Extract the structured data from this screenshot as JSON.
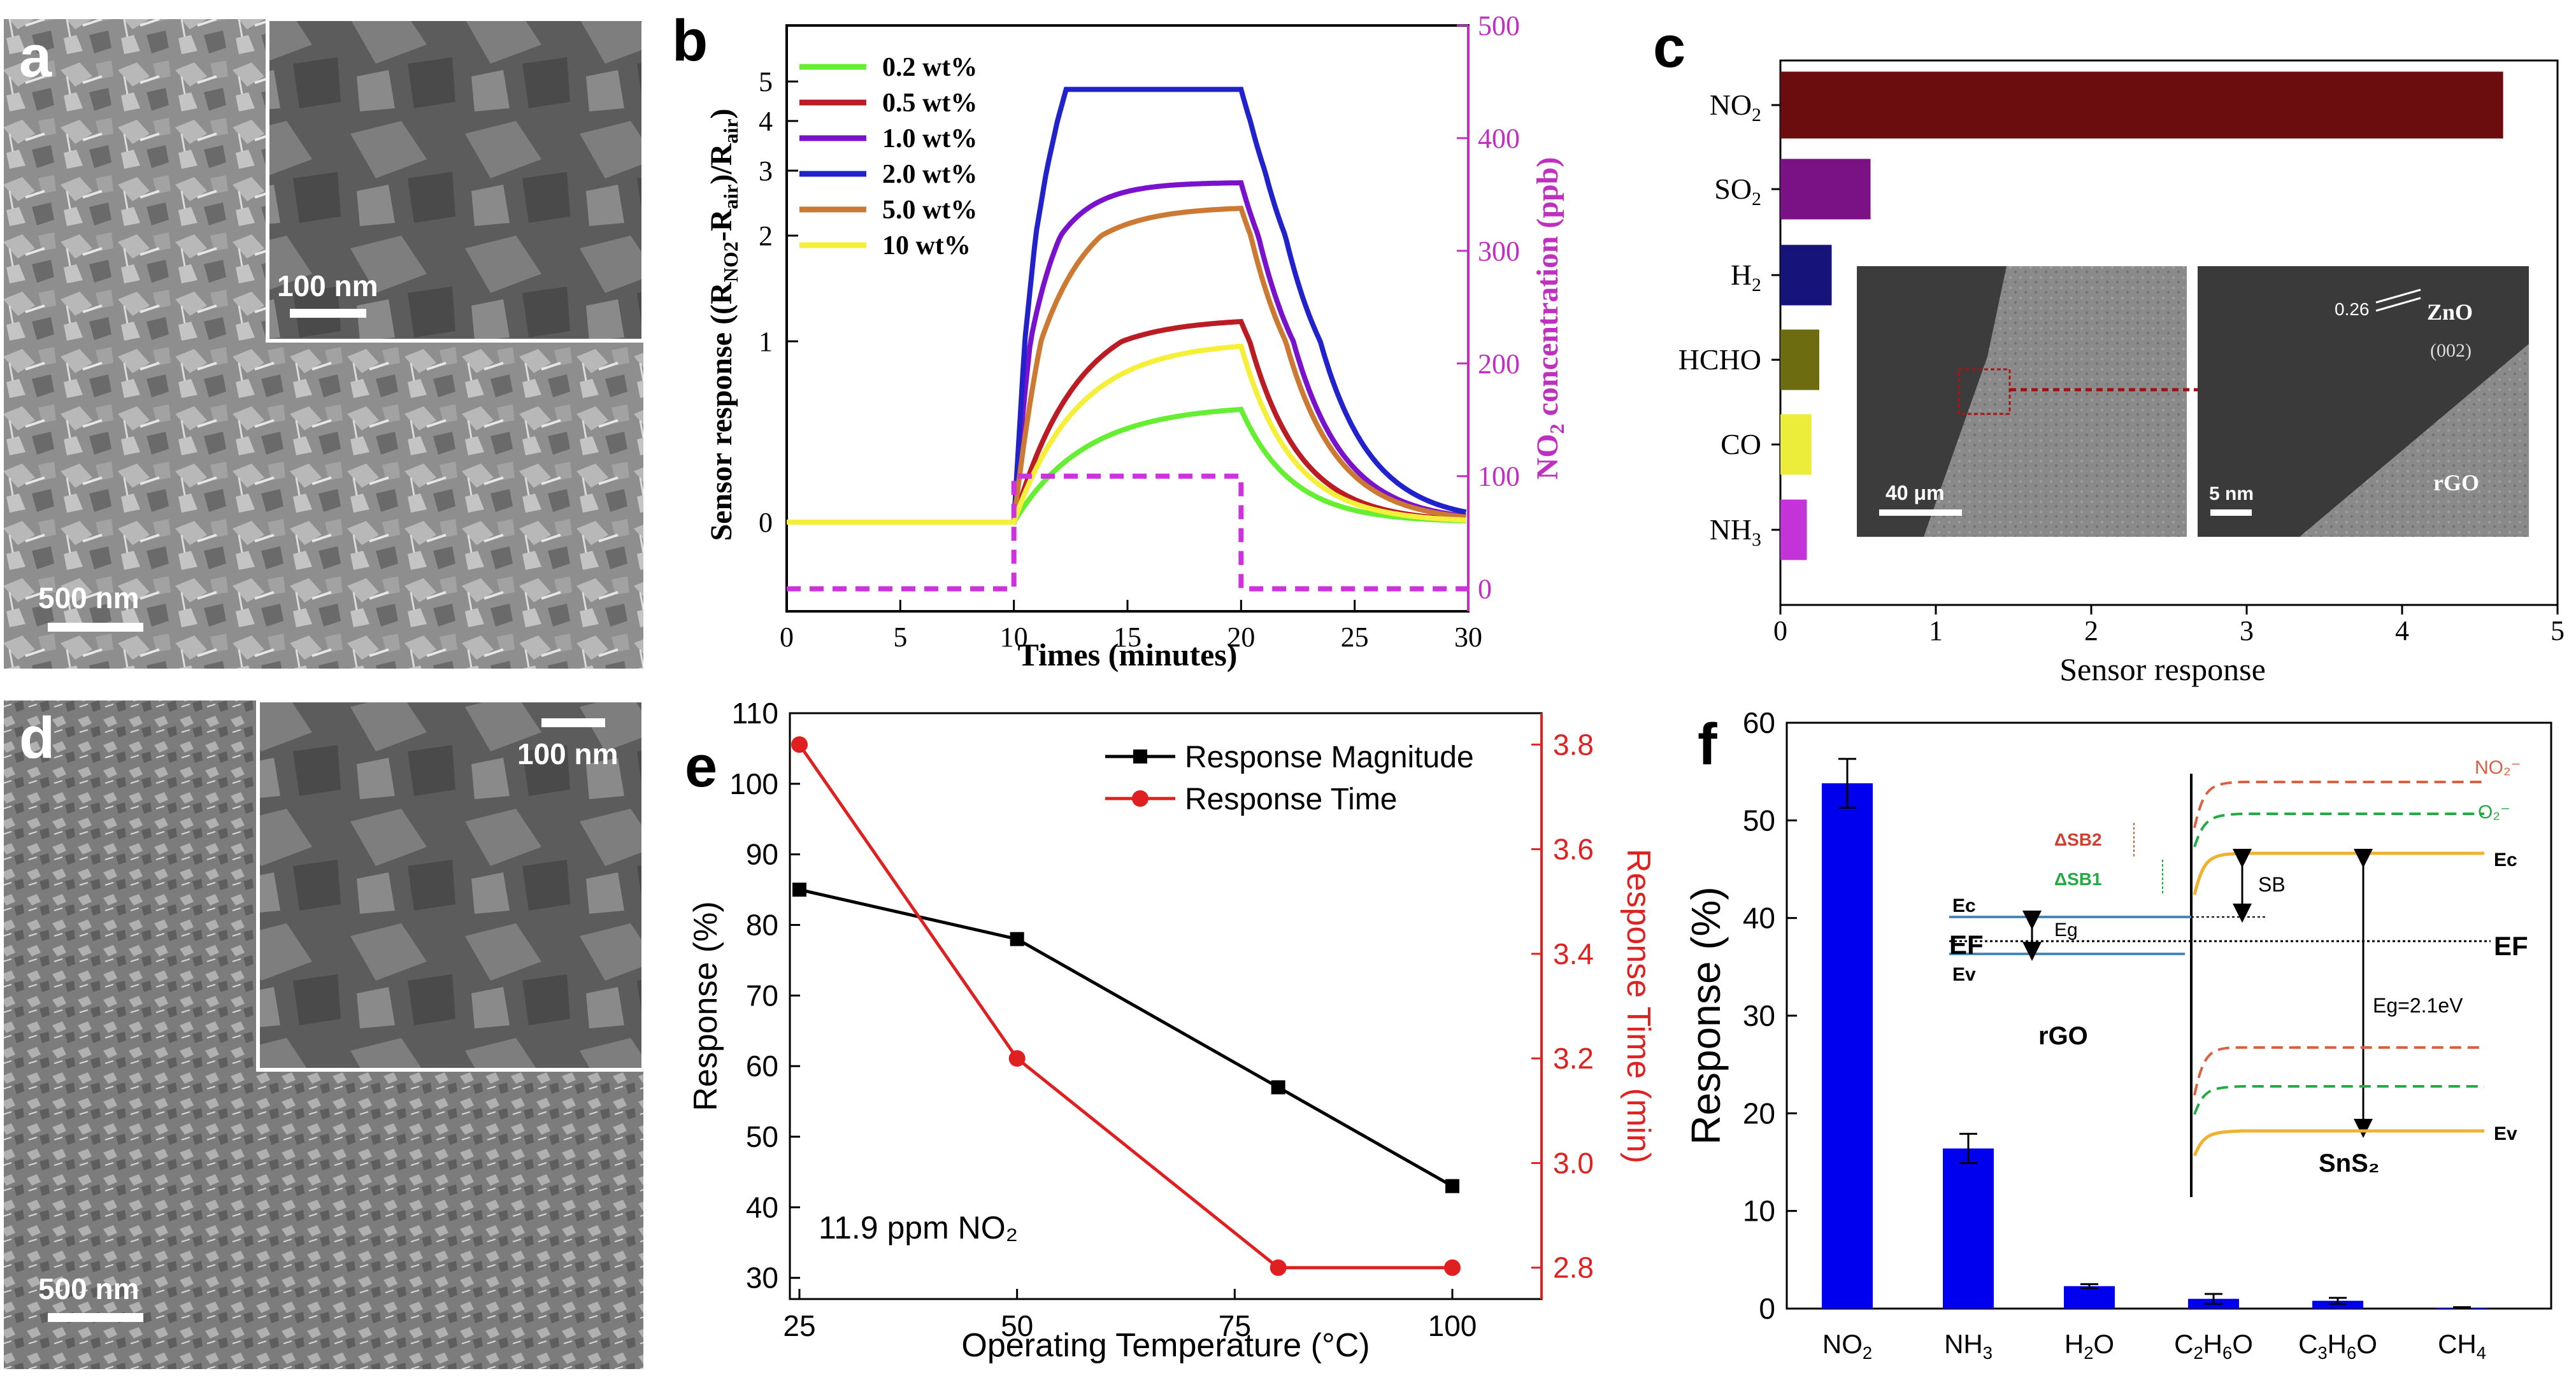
{
  "panels": {
    "a": {
      "label": "a",
      "scale_main": "500 nm",
      "scale_inset": "100 nm"
    },
    "d": {
      "label": "d",
      "scale_main": "500 nm",
      "scale_inset": "100 nm"
    }
  },
  "colors": {
    "purple_axis": "#c030c0",
    "red_axis": "#dd2222",
    "bar_blue": "#0000ee",
    "grey_bg": "#8c8c8c",
    "tem_bg": "#7a7a7a"
  },
  "chart_data": [
    {
      "id": "b",
      "label": "b",
      "type": "line",
      "xlabel": "Times (minutes)",
      "ylabel": "Sensor response ((RNO2-Rair)/Rair)",
      "y2label": "NO2 concentration (ppb)",
      "xlim": [
        0,
        30
      ],
      "xticks": [
        0,
        5,
        10,
        15,
        20,
        25,
        30
      ],
      "yticks": [
        0,
        1,
        2,
        3,
        4,
        5
      ],
      "y2lim": [
        -20,
        500
      ],
      "y2ticks": [
        0,
        100,
        200,
        300,
        400,
        500
      ],
      "series": [
        {
          "name": "0.2 wt%",
          "color": "#66ee33",
          "plateau": 0.65
        },
        {
          "name": "0.5 wt%",
          "color": "#bb1b22",
          "plateau": 1.22
        },
        {
          "name": "1.0 wt%",
          "color": "#7a11cc",
          "plateau": 2.82
        },
        {
          "name": "2.0 wt%",
          "color": "#2222cc",
          "plateau": 4.8
        },
        {
          "name": "5.0 wt%",
          "color": "#cc7a33",
          "plateau": 2.45
        },
        {
          "name": "10 wt%",
          "color": "#f6ef3a",
          "plateau": 1.0
        }
      ],
      "gas_pulse": {
        "name": "NO2 concentration",
        "on_min": 10,
        "off_min": 20,
        "level_ppb": 100,
        "base_ppb": 0,
        "color": "#cc33dd"
      }
    },
    {
      "id": "c",
      "label": "c",
      "type": "bar",
      "xlabel": "Sensor response",
      "xlim": [
        0,
        5
      ],
      "xticks": [
        0,
        1,
        2,
        3,
        4,
        5
      ],
      "categories": [
        "NO2",
        "SO2",
        "H2",
        "HCHO",
        "CO",
        "NH3"
      ],
      "values": [
        4.65,
        0.58,
        0.33,
        0.25,
        0.2,
        0.17
      ],
      "colors": [
        "#6b0d0f",
        "#7a1184",
        "#16137a",
        "#6e6c11",
        "#eced3a",
        "#c433d8"
      ],
      "inset": {
        "scale_left": "40 μm",
        "scale_right": "5 nm",
        "d_spacing": "0.26",
        "phase": "ZnO",
        "plane": "(002)",
        "substrate": "rGO"
      }
    },
    {
      "id": "e",
      "label": "e",
      "type": "line",
      "xlabel": "Operating Temperature (°C)",
      "ylabel": "Response (%)",
      "y2label": "Response Time (min)",
      "x": [
        25,
        50,
        80,
        100
      ],
      "xticks": [
        25,
        50,
        75,
        100
      ],
      "ylim": [
        27,
        110
      ],
      "yticks": [
        30,
        40,
        50,
        60,
        70,
        80,
        90,
        100,
        110
      ],
      "y2lim": [
        2.74,
        3.86
      ],
      "y2ticks": [
        2.8,
        3.0,
        3.2,
        3.4,
        3.6,
        3.8
      ],
      "series": [
        {
          "name": "Response Magnitude",
          "values": [
            85,
            78,
            57,
            43
          ],
          "color": "#000000",
          "axis": "left"
        },
        {
          "name": "Response Time",
          "values": [
            3.8,
            3.2,
            2.8,
            2.8
          ],
          "color": "#e02020",
          "axis": "right"
        }
      ],
      "annotation": "11.9 ppm NO₂"
    },
    {
      "id": "f",
      "label": "f",
      "type": "bar",
      "ylabel": "Response (%)",
      "ylim": [
        0,
        60
      ],
      "yticks": [
        0,
        10,
        20,
        30,
        40,
        50,
        60
      ],
      "categories": [
        "NO2",
        "NH3",
        "H2O",
        "C2H6O",
        "C3H6O",
        "CH4"
      ],
      "values": [
        53.8,
        16.4,
        2.3,
        1.0,
        0.8,
        0.1
      ],
      "errors": [
        2.5,
        1.5,
        0.2,
        0.5,
        0.3,
        0.05
      ],
      "inset": {
        "Ec": "Ec",
        "Ef": "EF",
        "Ev": "Ev",
        "eg_small": "Eg",
        "rgo": "rGO",
        "no2": "NO₂⁻",
        "o2": "O₂⁻",
        "dsb2": "ΔSB2",
        "dsb1": "ΔSB1",
        "sb": "SB",
        "Ec_right": "Ec",
        "Ef_right": "EF",
        "Ev_right": "Ev",
        "eg_big": "Eg=2.1eV",
        "sns2": "SnS₂"
      }
    }
  ]
}
